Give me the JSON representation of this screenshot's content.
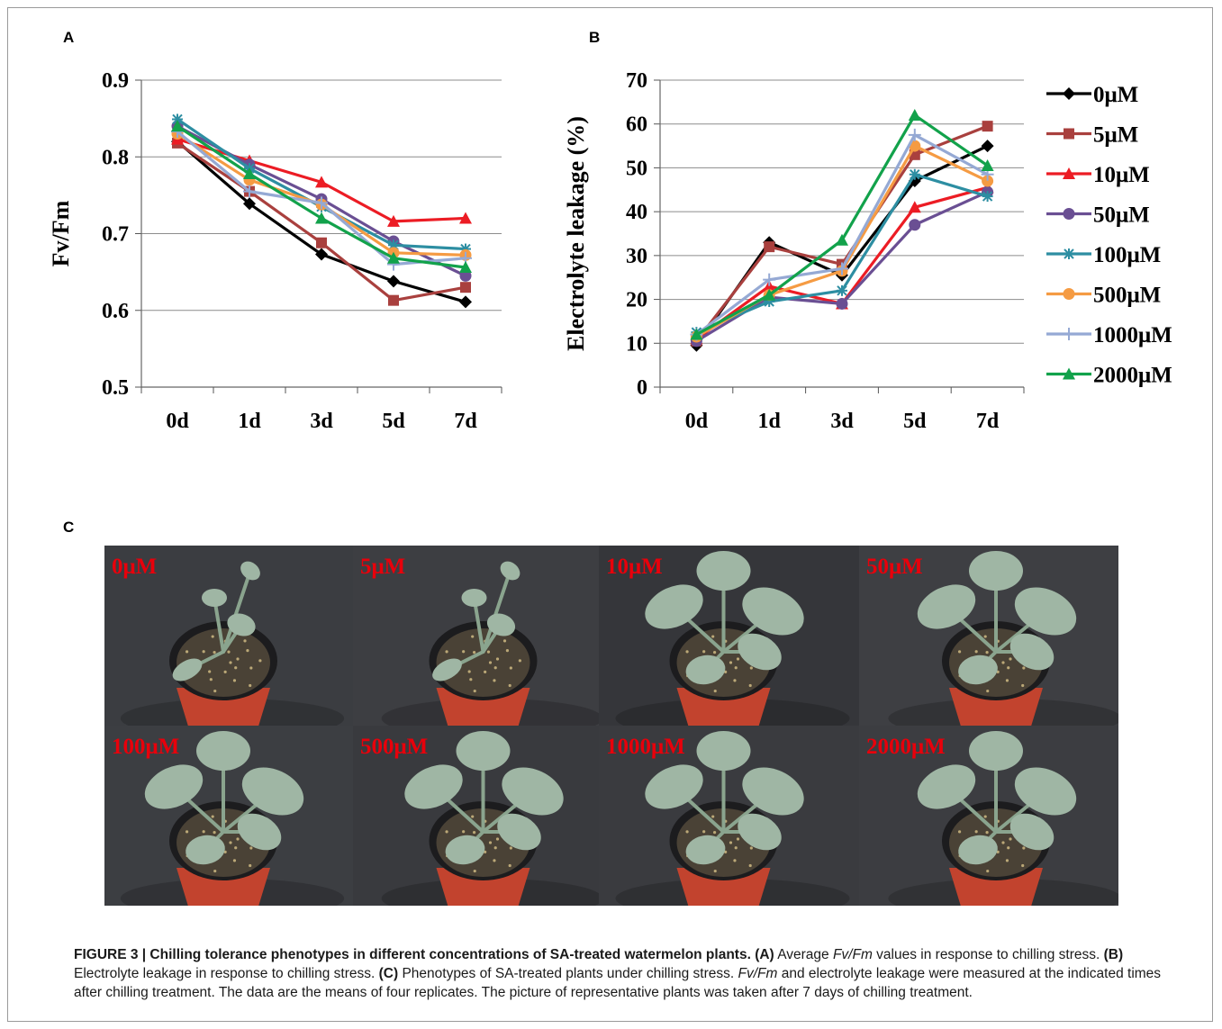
{
  "panels": {
    "a": "A",
    "b": "B",
    "c": "C"
  },
  "chart_data": [
    {
      "type": "line",
      "panel": "A",
      "ylabel": "Fv/Fm",
      "categories": [
        "0d",
        "1d",
        "3d",
        "5d",
        "7d"
      ],
      "ylim": [
        0.5,
        0.9
      ],
      "yticks": [
        "0.5",
        "0.6",
        "0.7",
        "0.8",
        "0.9"
      ],
      "grid": true,
      "series": [
        {
          "name": "0μM",
          "color": "#000000",
          "marker": "diamond",
          "values": [
            0.82,
            0.739,
            0.673,
            0.638,
            0.611
          ]
        },
        {
          "name": "5μM",
          "color": "#a9403e",
          "marker": "square",
          "values": [
            0.818,
            0.755,
            0.688,
            0.613,
            0.63
          ]
        },
        {
          "name": "10μM",
          "color": "#ec1c24",
          "marker": "triangle",
          "values": [
            0.823,
            0.795,
            0.767,
            0.716,
            0.72
          ]
        },
        {
          "name": "50μM",
          "color": "#6a4f93",
          "marker": "circle",
          "values": [
            0.84,
            0.79,
            0.745,
            0.69,
            0.645
          ]
        },
        {
          "name": "100μM",
          "color": "#2d8ea2",
          "marker": "star",
          "values": [
            0.849,
            0.785,
            0.735,
            0.685,
            0.68
          ]
        },
        {
          "name": "500μM",
          "color": "#f59b43",
          "marker": "circle",
          "values": [
            0.83,
            0.77,
            0.738,
            0.675,
            0.672
          ]
        },
        {
          "name": "1000μM",
          "color": "#95a9d4",
          "marker": "plus",
          "values": [
            0.833,
            0.755,
            0.74,
            0.66,
            0.668
          ]
        },
        {
          "name": "2000μM",
          "color": "#12a24b",
          "marker": "triangle",
          "values": [
            0.84,
            0.778,
            0.72,
            0.668,
            0.656
          ]
        }
      ]
    },
    {
      "type": "line",
      "panel": "B",
      "ylabel": "Electrolyte leakage (%)",
      "categories": [
        "0d",
        "1d",
        "3d",
        "5d",
        "7d"
      ],
      "ylim": [
        0,
        70
      ],
      "yticks": [
        "0",
        "10",
        "20",
        "30",
        "40",
        "50",
        "60",
        "70"
      ],
      "grid": true,
      "legend": "right",
      "series": [
        {
          "name": "0μM",
          "color": "#000000",
          "marker": "diamond",
          "values": [
            9.5,
            33,
            25.5,
            47,
            55
          ]
        },
        {
          "name": "5μM",
          "color": "#a9403e",
          "marker": "square",
          "values": [
            10.5,
            32,
            28,
            53,
            59.5
          ]
        },
        {
          "name": "10μM",
          "color": "#ec1c24",
          "marker": "triangle",
          "values": [
            11,
            23,
            19,
            41,
            45.5
          ]
        },
        {
          "name": "50μM",
          "color": "#6a4f93",
          "marker": "circle",
          "values": [
            10.5,
            20.5,
            19,
            37,
            44.5
          ]
        },
        {
          "name": "100μM",
          "color": "#2d8ea2",
          "marker": "star",
          "values": [
            12.5,
            19.5,
            22,
            48.5,
            43.5
          ]
        },
        {
          "name": "500μM",
          "color": "#f59b43",
          "marker": "circle",
          "values": [
            11.5,
            21,
            26.5,
            55,
            47
          ]
        },
        {
          "name": "1000μM",
          "color": "#95a9d4",
          "marker": "plus",
          "values": [
            12,
            24.5,
            27,
            57.5,
            48.5
          ]
        },
        {
          "name": "2000μM",
          "color": "#12a24b",
          "marker": "triangle",
          "values": [
            12,
            21,
            33.5,
            62,
            50.5
          ]
        }
      ]
    }
  ],
  "photos": [
    "0μM",
    "5μM",
    "10μM",
    "50μM",
    "100μM",
    "500μM",
    "1000μM",
    "2000μM"
  ],
  "caption": {
    "figure_title": "FIGURE 3 | Chilling tolerance phenotypes in different concentrations of SA-treated watermelon plants.",
    "a_tag": "(A)",
    "a_text_1": "Average",
    "fvfm_1": "Fv/Fm",
    "a_text_2": "values in response to chilling stress.",
    "b_tag": "(B)",
    "b_text": "Electrolyte leakage in response to chilling stress.",
    "c_tag": "(C)",
    "c_text": "Phenotypes of SA-treated plants under chilling stress.",
    "fvfm_2": "Fv/Fm",
    "tail": "and electrolyte leakage were measured at the indicated times after chilling treatment. The data are the means of four replicates. The picture of representative plants was taken after 7 days of chilling treatment."
  }
}
